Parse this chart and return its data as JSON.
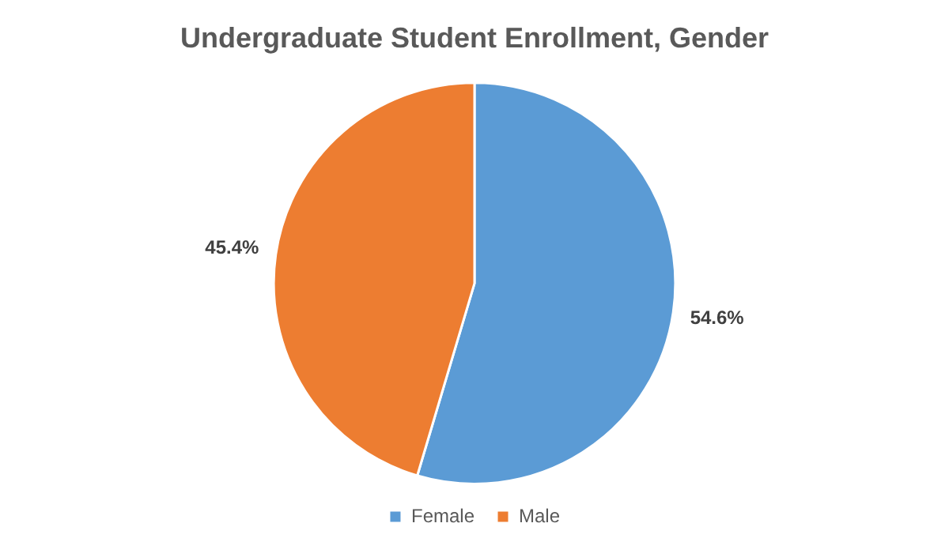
{
  "chart_data": {
    "type": "pie",
    "title": "Undergraduate Student Enrollment, Gender",
    "categories": [
      "Female",
      "Male"
    ],
    "values": [
      54.6,
      45.4
    ],
    "colors": [
      "#5b9bd5",
      "#ed7d31"
    ],
    "value_labels": [
      "54.6%",
      "45.4%"
    ],
    "legend": "bottom"
  }
}
